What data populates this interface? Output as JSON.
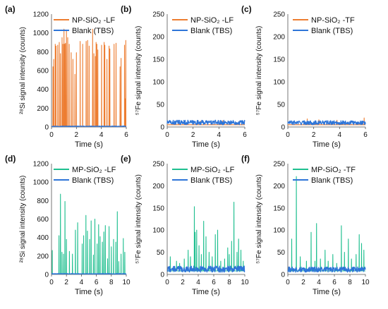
{
  "chart_data": [
    {
      "type": "line",
      "panel_label": "(a)",
      "ylabel": "²⁸Si signal intensity (counts)",
      "xlabel": "Time (s)",
      "xlim": [
        0,
        6
      ],
      "ylim": [
        0,
        1200
      ],
      "xticks": [
        "0",
        "2",
        "4",
        "6"
      ],
      "yticks": [
        "0",
        "200",
        "400",
        "600",
        "800",
        "1000",
        "1200"
      ],
      "legend_position": "top-right",
      "series": [
        {
          "name": "NP-SiO₂ -LF",
          "color": "#ED7D31",
          "style": "spikes",
          "baseline": 6,
          "x": [
            0.12,
            0.18,
            0.3,
            0.36,
            0.5,
            0.62,
            0.72,
            0.85,
            0.92,
            1.0,
            1.06,
            1.12,
            1.2,
            1.3,
            1.42,
            1.58,
            1.72,
            1.88,
            2.0,
            2.3,
            2.5,
            2.78,
            2.9,
            3.02,
            3.3,
            3.4,
            3.52,
            3.58,
            3.64,
            3.72,
            4.02,
            4.22,
            4.28,
            4.45,
            4.62,
            4.68,
            5.02,
            5.18,
            5.5,
            5.58,
            5.86,
            5.92,
            5.96
          ],
          "y": [
            640,
            720,
            880,
            860,
            870,
            900,
            780,
            950,
            880,
            1040,
            880,
            890,
            1020,
            950,
            880,
            790,
            720,
            560,
            790,
            910,
            880,
            910,
            920,
            860,
            1040,
            780,
            750,
            900,
            880,
            820,
            870,
            900,
            870,
            720,
            860,
            830,
            880,
            890,
            640,
            730,
            870,
            300,
            920
          ]
        },
        {
          "name": "Blank (TBS)",
          "color": "#2E75D8",
          "style": "noise",
          "baseline": 4,
          "amplitude": 6
        }
      ]
    },
    {
      "type": "line",
      "panel_label": "(b)",
      "ylabel": "⁵⁷Fe signal intensity (counts)",
      "xlabel": "Time (s)",
      "xlim": [
        0,
        6
      ],
      "ylim": [
        0,
        250
      ],
      "xticks": [
        "0",
        "2",
        "4",
        "6"
      ],
      "yticks": [
        "0",
        "50",
        "100",
        "150",
        "200",
        "250"
      ],
      "legend_position": "top-right",
      "series": [
        {
          "name": "NP-SiO₂ -LF",
          "color": "#ED7D31",
          "style": "spikes",
          "baseline": 5,
          "x": [
            0.9,
            2.6,
            4.3,
            5.6
          ],
          "y": [
            14,
            13,
            14,
            13
          ]
        },
        {
          "name": "Blank (TBS)",
          "color": "#2E75D8",
          "style": "noise",
          "baseline": 5,
          "amplitude": 10
        }
      ]
    },
    {
      "type": "line",
      "panel_label": "(c)",
      "ylabel": "⁵⁷Fe signal intensity (counts)",
      "xlabel": "Time (s)",
      "xlim": [
        0,
        6
      ],
      "ylim": [
        0,
        250
      ],
      "xticks": [
        "0",
        "2",
        "4",
        "6"
      ],
      "yticks": [
        "0",
        "50",
        "100",
        "150",
        "200",
        "250"
      ],
      "legend_position": "top-right",
      "series": [
        {
          "name": "NP-SiO₂ -TF",
          "color": "#ED7D31",
          "style": "spikes",
          "baseline": 5,
          "x": [
            1.5,
            2.4,
            3.8,
            5.9
          ],
          "y": [
            18,
            16,
            15,
            20
          ]
        },
        {
          "name": "Blank (TBS)",
          "color": "#2E75D8",
          "style": "noise",
          "baseline": 5,
          "amplitude": 9
        }
      ]
    },
    {
      "type": "line",
      "panel_label": "(d)",
      "ylabel": "²⁸Si signal intensity (counts)",
      "xlabel": "Time (s)",
      "xlim": [
        0,
        10
      ],
      "ylim": [
        0,
        1200
      ],
      "xticks": [
        "0",
        "2",
        "4",
        "6",
        "8",
        "10"
      ],
      "yticks": [
        "0",
        "200",
        "400",
        "600",
        "800",
        "1000",
        "1200"
      ],
      "legend_position": "top-right",
      "series": [
        {
          "name": "MP-SiO₂ -LF",
          "color": "#1FBF8F",
          "style": "spikes",
          "baseline": 6,
          "x": [
            0.1,
            1.0,
            1.2,
            1.4,
            1.6,
            1.8,
            2.0,
            2.4,
            2.8,
            3.2,
            3.5,
            4.1,
            4.3,
            4.6,
            4.8,
            5.1,
            5.3,
            5.6,
            5.8,
            6.1,
            6.3,
            6.5,
            6.8,
            7.0,
            7.2,
            7.5,
            7.7,
            8.0,
            8.3,
            8.6,
            8.8,
            9.0,
            9.3,
            9.6,
            9.8
          ],
          "y": [
            260,
            420,
            870,
            240,
            220,
            790,
            380,
            250,
            220,
            480,
            560,
            330,
            420,
            640,
            470,
            380,
            580,
            210,
            600,
            330,
            540,
            410,
            350,
            460,
            530,
            170,
            520,
            300,
            380,
            350,
            680,
            140,
            220,
            390,
            240
          ]
        },
        {
          "name": "Blank (TBS)",
          "color": "#2E75D8",
          "style": "noise",
          "baseline": 4,
          "amplitude": 6
        }
      ]
    },
    {
      "type": "line",
      "panel_label": "(e)",
      "ylabel": "⁵⁷Fe signal intensity (counts)",
      "xlabel": "Time (s)",
      "xlim": [
        0,
        10
      ],
      "ylim": [
        0,
        250
      ],
      "xticks": [
        "0",
        "2",
        "4",
        "6",
        "8",
        "10"
      ],
      "yticks": [
        "0",
        "50",
        "100",
        "150",
        "200",
        "250"
      ],
      "legend_position": "top-right",
      "series": [
        {
          "name": "MP-SiO₂ -LF",
          "color": "#1FBF8F",
          "style": "spikes",
          "baseline": 8,
          "x": [
            0.4,
            1.2,
            1.6,
            2.2,
            2.7,
            3.0,
            3.5,
            3.6,
            3.8,
            4.1,
            4.4,
            4.7,
            5.0,
            5.4,
            5.8,
            6.2,
            6.5,
            6.9,
            7.4,
            7.8,
            8.0,
            8.3,
            8.6,
            9.0,
            9.2,
            9.5,
            9.8
          ],
          "y": [
            40,
            30,
            25,
            35,
            55,
            40,
            153,
            95,
            100,
            65,
            45,
            120,
            85,
            50,
            40,
            90,
            100,
            30,
            35,
            60,
            45,
            75,
            163,
            50,
            80,
            55,
            30
          ]
        },
        {
          "name": "Blank (TBS)",
          "color": "#2E75D8",
          "style": "noise",
          "baseline": 5,
          "amplitude": 14
        }
      ]
    },
    {
      "type": "line",
      "panel_label": "(f)",
      "ylabel": "⁵⁷Fe signal intensity (counts)",
      "xlabel": "Time (s)",
      "xlim": [
        0,
        10
      ],
      "ylim": [
        0,
        250
      ],
      "xticks": [
        "0",
        "2",
        "4",
        "6",
        "8",
        "10"
      ],
      "yticks": [
        "0",
        "50",
        "100",
        "150",
        "200",
        "250"
      ],
      "legend_position": "top-right",
      "series": [
        {
          "name": "MP-SiO₂ -TF",
          "color": "#1FBF8F",
          "style": "spikes",
          "baseline": 8,
          "x": [
            0.5,
            1.1,
            1.6,
            2.4,
            3.0,
            3.5,
            3.7,
            4.2,
            4.8,
            5.2,
            5.8,
            6.3,
            6.9,
            7.3,
            7.8,
            8.2,
            8.8,
            9.2,
            9.5,
            9.8
          ],
          "y": [
            80,
            221,
            40,
            30,
            95,
            30,
            115,
            35,
            55,
            30,
            45,
            25,
            110,
            50,
            80,
            35,
            45,
            90,
            70,
            55
          ]
        },
        {
          "name": "Blank (TBS)",
          "color": "#2E75D8",
          "style": "noise",
          "baseline": 5,
          "amplitude": 12
        }
      ]
    }
  ]
}
